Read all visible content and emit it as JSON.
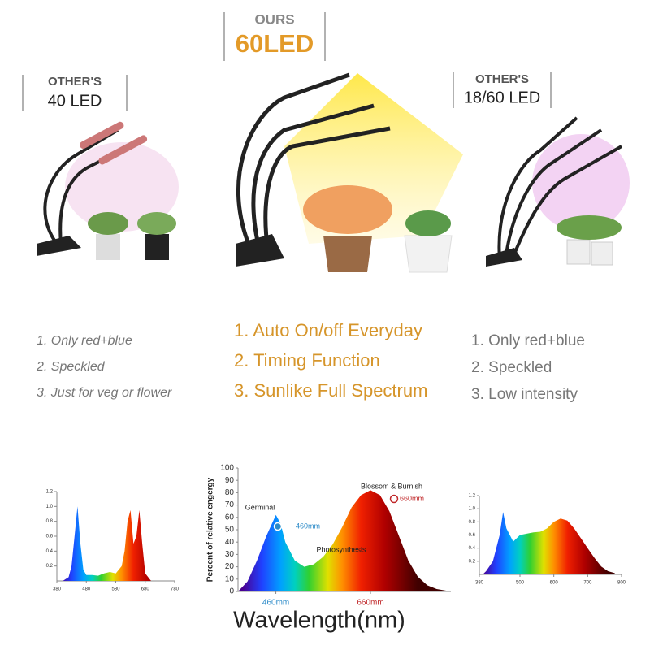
{
  "labels": {
    "left": {
      "top": "OTHER'S",
      "main": "40 LED"
    },
    "center": {
      "top": "OURS",
      "main": "60LED"
    },
    "right": {
      "top": "OTHER'S",
      "main": "18/60 LED"
    }
  },
  "features": {
    "left": [
      "1. Only red+blue",
      "2. Speckled",
      "3. Just for veg or flower"
    ],
    "center": [
      "1. Auto On/off Everyday",
      "2. Timing Function",
      "3. Sunlike Full Spectrum"
    ],
    "right": [
      "1.  Only red+blue",
      "2.  Speckled",
      "3.  Low intensity"
    ]
  },
  "chart_data": [
    {
      "type": "area",
      "x": [
        400,
        420,
        430,
        440,
        450,
        460,
        470,
        480,
        500,
        520,
        540,
        560,
        580,
        600,
        610,
        620,
        630,
        640,
        650,
        660,
        670,
        680,
        700
      ],
      "values": [
        0,
        0.05,
        0.2,
        0.6,
        1.0,
        0.5,
        0.15,
        0.08,
        0.08,
        0.07,
        0.1,
        0.12,
        0.1,
        0.2,
        0.4,
        0.8,
        0.95,
        0.5,
        0.6,
        0.95,
        0.5,
        0.1,
        0
      ],
      "xlim": [
        380,
        780
      ],
      "ylim": [
        0,
        1.2
      ],
      "xticks": [
        380,
        480,
        580,
        680,
        780
      ],
      "yticks": [
        0.2,
        0.4,
        0.6,
        0.8,
        {
          "value": 1,
          "label": "1.0"
        },
        1.2
      ]
    },
    {
      "type": "area",
      "ylabel": "Percent of relative engergy",
      "xlabel": "Wavelength(nm)",
      "annotations": [
        "Germinal",
        "460mm",
        "Photosynthesis",
        "Blossom & Burnish",
        "660mm"
      ],
      "x": [
        380,
        400,
        420,
        440,
        460,
        470,
        480,
        500,
        520,
        540,
        560,
        580,
        600,
        620,
        640,
        660,
        680,
        700,
        720,
        740,
        760,
        780,
        800,
        830
      ],
      "values": [
        0,
        8,
        25,
        45,
        62,
        55,
        40,
        25,
        20,
        22,
        28,
        38,
        52,
        68,
        78,
        82,
        78,
        65,
        45,
        25,
        12,
        5,
        2,
        0
      ],
      "xlim": [
        380,
        830
      ],
      "ylim": [
        0,
        100
      ],
      "xticks": [
        {
          "value": 460,
          "label": "460mm"
        },
        {
          "value": 660,
          "label": "660mm"
        }
      ],
      "yticks": [
        0,
        10,
        20,
        30,
        40,
        50,
        60,
        70,
        80,
        90,
        100
      ]
    },
    {
      "type": "area",
      "x": [
        390,
        400,
        420,
        440,
        450,
        460,
        480,
        500,
        520,
        540,
        560,
        580,
        600,
        620,
        640,
        660,
        680,
        700,
        720,
        740,
        760,
        780
      ],
      "values": [
        0,
        0.05,
        0.2,
        0.6,
        0.95,
        0.7,
        0.5,
        0.6,
        0.62,
        0.64,
        0.65,
        0.7,
        0.8,
        0.85,
        0.82,
        0.7,
        0.55,
        0.4,
        0.25,
        0.12,
        0.05,
        0.02
      ],
      "xlim": [
        380,
        800
      ],
      "ylim": [
        0,
        1.2
      ],
      "xticks": [
        380,
        500,
        600,
        700,
        800
      ],
      "yticks": [
        0.2,
        0.4,
        0.6,
        0.8,
        {
          "value": 1,
          "label": "1.0"
        },
        1.2
      ]
    }
  ]
}
